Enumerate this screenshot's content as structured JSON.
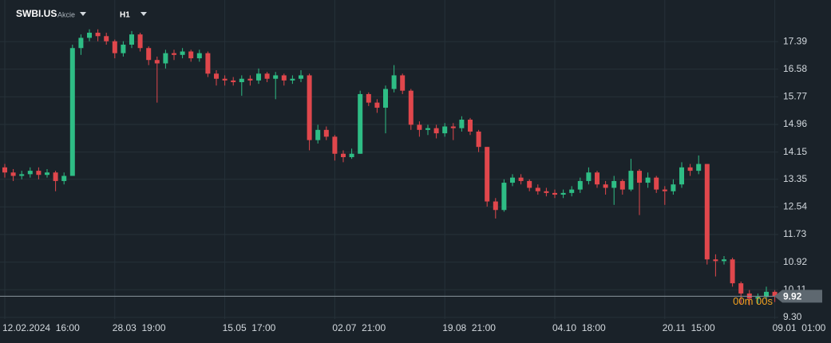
{
  "header": {
    "symbol": "SWBI.US",
    "asset_class": "Akcie",
    "timeframe": "H1"
  },
  "chart_data": {
    "type": "candlestick",
    "xticks": [
      {
        "value": 0,
        "label": "12.02.2024  16:00"
      },
      {
        "value": 13,
        "label": "28.03  19:00"
      },
      {
        "value": 26,
        "label": "15.05  17:00"
      },
      {
        "value": 39,
        "label": "02.07  21:00"
      },
      {
        "value": 52,
        "label": "19.08  21:00"
      },
      {
        "value": 65,
        "label": "04.10  18:00"
      },
      {
        "value": 78,
        "label": "20.11  15:00"
      },
      {
        "value": 91,
        "label": "09.01  01:00"
      }
    ],
    "xlim": [
      0,
      91
    ],
    "ylim": [
      9.25,
      18.61
    ],
    "yticks": [
      {
        "value": 9.3,
        "label": "9.30"
      },
      10.11,
      10.92,
      11.73,
      12.54,
      13.35,
      14.15,
      14.96,
      15.77,
      16.58,
      17.39
    ],
    "grid": true,
    "up_color": "#2ebd85",
    "down_color": "#e0474c",
    "open": [
      13.7,
      13.55,
      13.45,
      13.5,
      13.6,
      13.48,
      13.55,
      13.3,
      13.45,
      17.2,
      17.5,
      17.65,
      17.55,
      17.4,
      17.05,
      17.3,
      17.6,
      17.2,
      16.85,
      16.75,
      17.05,
      17.0,
      17.1,
      16.9,
      17.05,
      16.45,
      16.3,
      16.25,
      16.2,
      16.3,
      16.25,
      16.45,
      16.3,
      16.4,
      16.25,
      16.3,
      16.4,
      14.5,
      14.8,
      14.6,
      14.1,
      14.0,
      14.1,
      15.85,
      15.6,
      15.45,
      16.0,
      16.4,
      15.95,
      14.95,
      14.8,
      14.85,
      14.7,
      14.9,
      14.85,
      15.1,
      14.75,
      14.3,
      12.7,
      12.45,
      13.25,
      13.4,
      13.3,
      13.1,
      13.0,
      12.95,
      12.9,
      12.95,
      13.05,
      13.3,
      13.55,
      13.2,
      13.1,
      13.3,
      13.05,
      13.6,
      13.25,
      13.4,
      13.05,
      13.0,
      13.2,
      13.7,
      13.6,
      13.8,
      11.0,
      10.95,
      11.0,
      10.3,
      10.0,
      9.85,
      9.9,
      10.05
    ],
    "high": [
      13.8,
      13.65,
      13.6,
      13.7,
      13.7,
      13.65,
      13.6,
      13.55,
      17.3,
      17.6,
      17.75,
      17.75,
      17.65,
      17.45,
      17.4,
      17.7,
      17.65,
      17.25,
      16.95,
      17.15,
      17.15,
      17.2,
      17.15,
      17.15,
      17.1,
      16.55,
      16.4,
      16.35,
      16.4,
      16.4,
      16.6,
      16.5,
      16.5,
      16.45,
      16.4,
      16.55,
      16.45,
      14.95,
      14.9,
      14.65,
      14.2,
      14.25,
      15.95,
      15.9,
      15.7,
      16.1,
      16.7,
      16.45,
      16.0,
      15.05,
      14.95,
      14.95,
      15.0,
      15.0,
      15.2,
      15.15,
      14.8,
      14.3,
      12.8,
      13.35,
      13.5,
      13.5,
      13.35,
      13.2,
      13.1,
      13.05,
      13.05,
      13.15,
      13.4,
      13.7,
      13.6,
      13.3,
      13.45,
      13.35,
      13.95,
      13.65,
      13.55,
      13.45,
      13.15,
      13.35,
      13.85,
      13.8,
      14.05,
      13.8,
      11.15,
      11.1,
      11.05,
      10.35,
      10.1,
      10.0,
      10.2,
      10.1
    ],
    "low": [
      13.4,
      13.3,
      13.35,
      13.4,
      13.35,
      13.4,
      13.0,
      13.2,
      13.45,
      17.0,
      17.4,
      17.4,
      17.3,
      16.9,
      16.95,
      17.2,
      17.1,
      16.7,
      15.6,
      16.6,
      16.85,
      16.9,
      16.8,
      16.8,
      16.35,
      16.1,
      16.1,
      16.1,
      15.8,
      16.1,
      16.15,
      16.2,
      15.7,
      16.1,
      16.15,
      16.2,
      14.2,
      14.4,
      14.5,
      13.9,
      13.85,
      13.95,
      14.1,
      15.5,
      15.3,
      14.7,
      15.9,
      15.85,
      14.8,
      14.6,
      14.65,
      14.55,
      14.6,
      14.5,
      14.75,
      14.65,
      14.15,
      12.55,
      12.2,
      12.4,
      13.15,
      13.2,
      13.0,
      12.9,
      12.85,
      12.8,
      12.8,
      12.85,
      12.95,
      13.2,
      13.1,
      12.9,
      12.6,
      12.9,
      13.0,
      12.3,
      13.1,
      12.95,
      12.6,
      12.9,
      13.1,
      13.45,
      13.5,
      10.85,
      10.5,
      10.85,
      10.2,
      9.7,
      9.65,
      9.7,
      9.8,
      9.75
    ],
    "close": [
      13.55,
      13.45,
      13.5,
      13.6,
      13.48,
      13.55,
      13.3,
      13.45,
      17.2,
      17.5,
      17.65,
      17.55,
      17.4,
      17.05,
      17.3,
      17.6,
      17.2,
      16.85,
      16.75,
      17.05,
      17.0,
      17.1,
      16.9,
      17.05,
      16.45,
      16.3,
      16.25,
      16.2,
      16.3,
      16.25,
      16.45,
      16.3,
      16.4,
      16.25,
      16.3,
      16.4,
      14.5,
      14.8,
      14.6,
      14.1,
      14.0,
      14.1,
      15.85,
      15.6,
      15.45,
      16.0,
      16.4,
      15.95,
      14.95,
      14.8,
      14.85,
      14.7,
      14.9,
      14.85,
      15.1,
      14.75,
      14.3,
      12.7,
      12.45,
      13.25,
      13.4,
      13.3,
      13.1,
      13.0,
      12.95,
      12.9,
      12.95,
      13.05,
      13.3,
      13.55,
      13.2,
      13.1,
      13.3,
      13.05,
      13.6,
      13.25,
      13.4,
      13.05,
      13.0,
      13.2,
      13.7,
      13.6,
      13.8,
      11.0,
      10.95,
      11.0,
      10.3,
      10.0,
      9.85,
      9.9,
      10.05,
      9.92
    ],
    "last_price": 9.92,
    "countdown": "00m 00s",
    "countdown_color": "#f0a020"
  }
}
